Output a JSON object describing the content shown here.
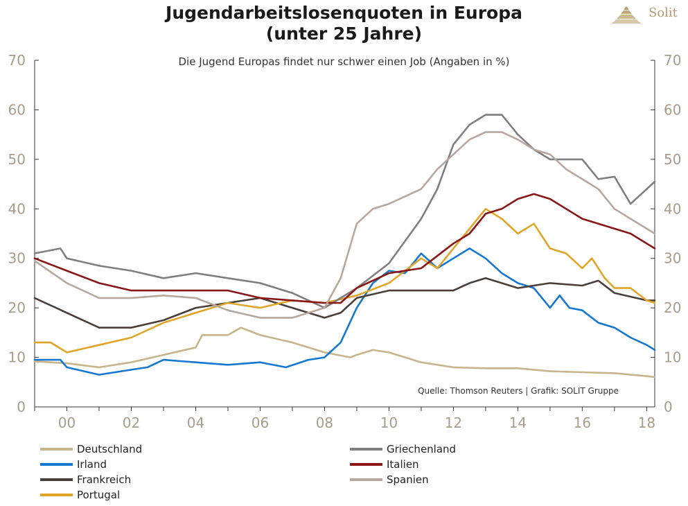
{
  "header": {
    "title_line1": "Jugendarbeitslosenquoten in Europa",
    "title_line2": "(unter 25 Jahre)",
    "subtitle": "Die Jugend Europas findet nur schwer einen Job (Angaben in %)",
    "logo_text": "Solit"
  },
  "source": "Quelle: Thomson Reuters | Grafik: SOLIT Gruppe",
  "chart_data": {
    "type": "line",
    "title": "Jugendarbeitslosenquoten in Europa (unter 25 Jahre)",
    "subtitle": "Die Jugend Europas findet nur schwer einen Job (Angaben in %)",
    "xlabel": "",
    "ylabel": "",
    "x_tick_labels": [
      "00",
      "02",
      "04",
      "06",
      "08",
      "10",
      "12",
      "14",
      "16",
      "18"
    ],
    "x_tick_years": [
      2000,
      2002,
      2004,
      2006,
      2008,
      2010,
      2012,
      2014,
      2016,
      2018
    ],
    "y_ticks": [
      0,
      10,
      20,
      30,
      40,
      50,
      60,
      70
    ],
    "xlim": [
      1999.0,
      2018.25
    ],
    "ylim": [
      0,
      70
    ],
    "grid": false,
    "legend_position": "bottom",
    "series": [
      {
        "name": "Deutschland",
        "color": "#c8b48a",
        "points": [
          [
            1999.0,
            9.2
          ],
          [
            2000.0,
            8.8
          ],
          [
            2001.0,
            8.0
          ],
          [
            2002.0,
            9.0
          ],
          [
            2003.0,
            10.5
          ],
          [
            2004.0,
            12.0
          ],
          [
            2004.2,
            14.5
          ],
          [
            2005.0,
            14.5
          ],
          [
            2005.4,
            16.0
          ],
          [
            2006.0,
            14.5
          ],
          [
            2007.0,
            13.0
          ],
          [
            2008.0,
            11.0
          ],
          [
            2008.8,
            10.0
          ],
          [
            2009.0,
            10.5
          ],
          [
            2009.5,
            11.5
          ],
          [
            2010.0,
            11.0
          ],
          [
            2011.0,
            9.0
          ],
          [
            2012.0,
            8.0
          ],
          [
            2013.0,
            7.8
          ],
          [
            2014.0,
            7.8
          ],
          [
            2015.0,
            7.2
          ],
          [
            2016.0,
            7.0
          ],
          [
            2017.0,
            6.8
          ],
          [
            2018.0,
            6.2
          ],
          [
            2018.25,
            6.0
          ]
        ]
      },
      {
        "name": "Irland",
        "color": "#1478d2",
        "points": [
          [
            1999.0,
            9.5
          ],
          [
            1999.8,
            9.5
          ],
          [
            2000.0,
            8.0
          ],
          [
            2001.0,
            6.5
          ],
          [
            2002.0,
            7.5
          ],
          [
            2002.5,
            8.0
          ],
          [
            2003.0,
            9.5
          ],
          [
            2004.0,
            9.0
          ],
          [
            2005.0,
            8.5
          ],
          [
            2006.0,
            9.0
          ],
          [
            2006.8,
            8.0
          ],
          [
            2007.5,
            9.5
          ],
          [
            2008.0,
            10.0
          ],
          [
            2008.5,
            13.0
          ],
          [
            2009.0,
            20.0
          ],
          [
            2009.5,
            25.0
          ],
          [
            2010.0,
            27.5
          ],
          [
            2010.5,
            27.0
          ],
          [
            2011.0,
            31.0
          ],
          [
            2011.5,
            28.0
          ],
          [
            2012.0,
            30.0
          ],
          [
            2012.5,
            32.0
          ],
          [
            2013.0,
            30.0
          ],
          [
            2013.5,
            27.0
          ],
          [
            2014.0,
            25.0
          ],
          [
            2014.5,
            24.0
          ],
          [
            2015.0,
            20.0
          ],
          [
            2015.3,
            22.5
          ],
          [
            2015.6,
            20.0
          ],
          [
            2016.0,
            19.5
          ],
          [
            2016.5,
            17.0
          ],
          [
            2017.0,
            16.0
          ],
          [
            2017.5,
            14.0
          ],
          [
            2018.0,
            12.5
          ],
          [
            2018.25,
            11.5
          ]
        ]
      },
      {
        "name": "Frankreich",
        "color": "#4a3f38",
        "points": [
          [
            1999.0,
            22.0
          ],
          [
            2000.0,
            19.0
          ],
          [
            2001.0,
            16.0
          ],
          [
            2002.0,
            16.0
          ],
          [
            2003.0,
            17.5
          ],
          [
            2004.0,
            20.0
          ],
          [
            2005.0,
            21.0
          ],
          [
            2006.0,
            22.0
          ],
          [
            2007.0,
            20.0
          ],
          [
            2008.0,
            18.0
          ],
          [
            2008.5,
            19.0
          ],
          [
            2009.0,
            22.0
          ],
          [
            2010.0,
            23.5
          ],
          [
            2011.0,
            23.5
          ],
          [
            2012.0,
            23.5
          ],
          [
            2012.5,
            25.0
          ],
          [
            2013.0,
            26.0
          ],
          [
            2013.5,
            25.0
          ],
          [
            2014.0,
            24.0
          ],
          [
            2015.0,
            25.0
          ],
          [
            2016.0,
            24.5
          ],
          [
            2016.5,
            25.5
          ],
          [
            2017.0,
            23.0
          ],
          [
            2018.0,
            21.5
          ],
          [
            2018.25,
            21.5
          ]
        ]
      },
      {
        "name": "Portugal",
        "color": "#e0a526",
        "points": [
          [
            1999.0,
            13.0
          ],
          [
            1999.5,
            13.0
          ],
          [
            2000.0,
            11.0
          ],
          [
            2001.0,
            12.5
          ],
          [
            2002.0,
            14.0
          ],
          [
            2003.0,
            17.0
          ],
          [
            2004.0,
            19.0
          ],
          [
            2005.0,
            21.0
          ],
          [
            2006.0,
            20.0
          ],
          [
            2007.0,
            21.5
          ],
          [
            2008.0,
            21.0
          ],
          [
            2009.0,
            22.5
          ],
          [
            2010.0,
            25.0
          ],
          [
            2011.0,
            30.0
          ],
          [
            2011.5,
            28.0
          ],
          [
            2012.0,
            32.0
          ],
          [
            2012.5,
            36.0
          ],
          [
            2013.0,
            40.0
          ],
          [
            2013.5,
            38.0
          ],
          [
            2014.0,
            35.0
          ],
          [
            2014.5,
            37.0
          ],
          [
            2015.0,
            32.0
          ],
          [
            2015.5,
            31.0
          ],
          [
            2016.0,
            28.0
          ],
          [
            2016.3,
            30.0
          ],
          [
            2016.7,
            26.0
          ],
          [
            2017.0,
            24.0
          ],
          [
            2017.5,
            24.0
          ],
          [
            2018.0,
            21.5
          ],
          [
            2018.25,
            21.0
          ]
        ]
      },
      {
        "name": "Griechenland",
        "color": "#7f7f7f",
        "points": [
          [
            1999.0,
            31.0
          ],
          [
            1999.8,
            32.0
          ],
          [
            2000.0,
            30.0
          ],
          [
            2001.0,
            28.5
          ],
          [
            2002.0,
            27.5
          ],
          [
            2003.0,
            26.0
          ],
          [
            2004.0,
            27.0
          ],
          [
            2005.0,
            26.0
          ],
          [
            2006.0,
            25.0
          ],
          [
            2007.0,
            23.0
          ],
          [
            2008.0,
            20.0
          ],
          [
            2008.5,
            22.0
          ],
          [
            2009.0,
            24.0
          ],
          [
            2010.0,
            29.0
          ],
          [
            2011.0,
            38.0
          ],
          [
            2011.5,
            44.0
          ],
          [
            2012.0,
            53.0
          ],
          [
            2012.5,
            57.0
          ],
          [
            2013.0,
            59.0
          ],
          [
            2013.5,
            59.0
          ],
          [
            2014.0,
            55.0
          ],
          [
            2014.5,
            52.0
          ],
          [
            2015.0,
            50.0
          ],
          [
            2015.5,
            50.0
          ],
          [
            2016.0,
            50.0
          ],
          [
            2016.5,
            46.0
          ],
          [
            2017.0,
            46.5
          ],
          [
            2017.5,
            41.0
          ],
          [
            2018.0,
            44.0
          ],
          [
            2018.25,
            45.5
          ]
        ]
      },
      {
        "name": "Italien",
        "color": "#8a1616",
        "points": [
          [
            1999.0,
            30.0
          ],
          [
            2000.0,
            27.5
          ],
          [
            2001.0,
            25.0
          ],
          [
            2002.0,
            23.5
          ],
          [
            2003.0,
            23.5
          ],
          [
            2004.0,
            23.5
          ],
          [
            2005.0,
            23.5
          ],
          [
            2006.0,
            22.0
          ],
          [
            2007.0,
            21.5
          ],
          [
            2008.0,
            21.0
          ],
          [
            2008.5,
            21.0
          ],
          [
            2009.0,
            24.0
          ],
          [
            2010.0,
            27.0
          ],
          [
            2011.0,
            28.0
          ],
          [
            2012.0,
            33.0
          ],
          [
            2012.5,
            35.0
          ],
          [
            2013.0,
            39.0
          ],
          [
            2013.5,
            40.0
          ],
          [
            2014.0,
            42.0
          ],
          [
            2014.5,
            43.0
          ],
          [
            2015.0,
            42.0
          ],
          [
            2015.5,
            40.0
          ],
          [
            2016.0,
            38.0
          ],
          [
            2016.5,
            37.0
          ],
          [
            2017.0,
            36.0
          ],
          [
            2017.5,
            35.0
          ],
          [
            2018.0,
            33.0
          ],
          [
            2018.25,
            32.0
          ]
        ]
      },
      {
        "name": "Spanien",
        "color": "#b8a79c",
        "points": [
          [
            1999.0,
            29.5
          ],
          [
            2000.0,
            25.0
          ],
          [
            2001.0,
            22.0
          ],
          [
            2002.0,
            22.0
          ],
          [
            2003.0,
            22.5
          ],
          [
            2004.0,
            22.0
          ],
          [
            2005.0,
            19.5
          ],
          [
            2006.0,
            18.0
          ],
          [
            2007.0,
            18.0
          ],
          [
            2008.0,
            20.0
          ],
          [
            2008.5,
            26.0
          ],
          [
            2009.0,
            37.0
          ],
          [
            2009.5,
            40.0
          ],
          [
            2010.0,
            41.0
          ],
          [
            2011.0,
            44.0
          ],
          [
            2011.5,
            48.0
          ],
          [
            2012.0,
            51.0
          ],
          [
            2012.5,
            54.0
          ],
          [
            2013.0,
            55.5
          ],
          [
            2013.5,
            55.5
          ],
          [
            2014.0,
            54.0
          ],
          [
            2014.5,
            52.0
          ],
          [
            2015.0,
            51.0
          ],
          [
            2015.5,
            48.0
          ],
          [
            2016.0,
            46.0
          ],
          [
            2016.5,
            44.0
          ],
          [
            2017.0,
            40.0
          ],
          [
            2017.5,
            38.0
          ],
          [
            2018.0,
            36.0
          ],
          [
            2018.25,
            35.0
          ]
        ]
      }
    ]
  }
}
